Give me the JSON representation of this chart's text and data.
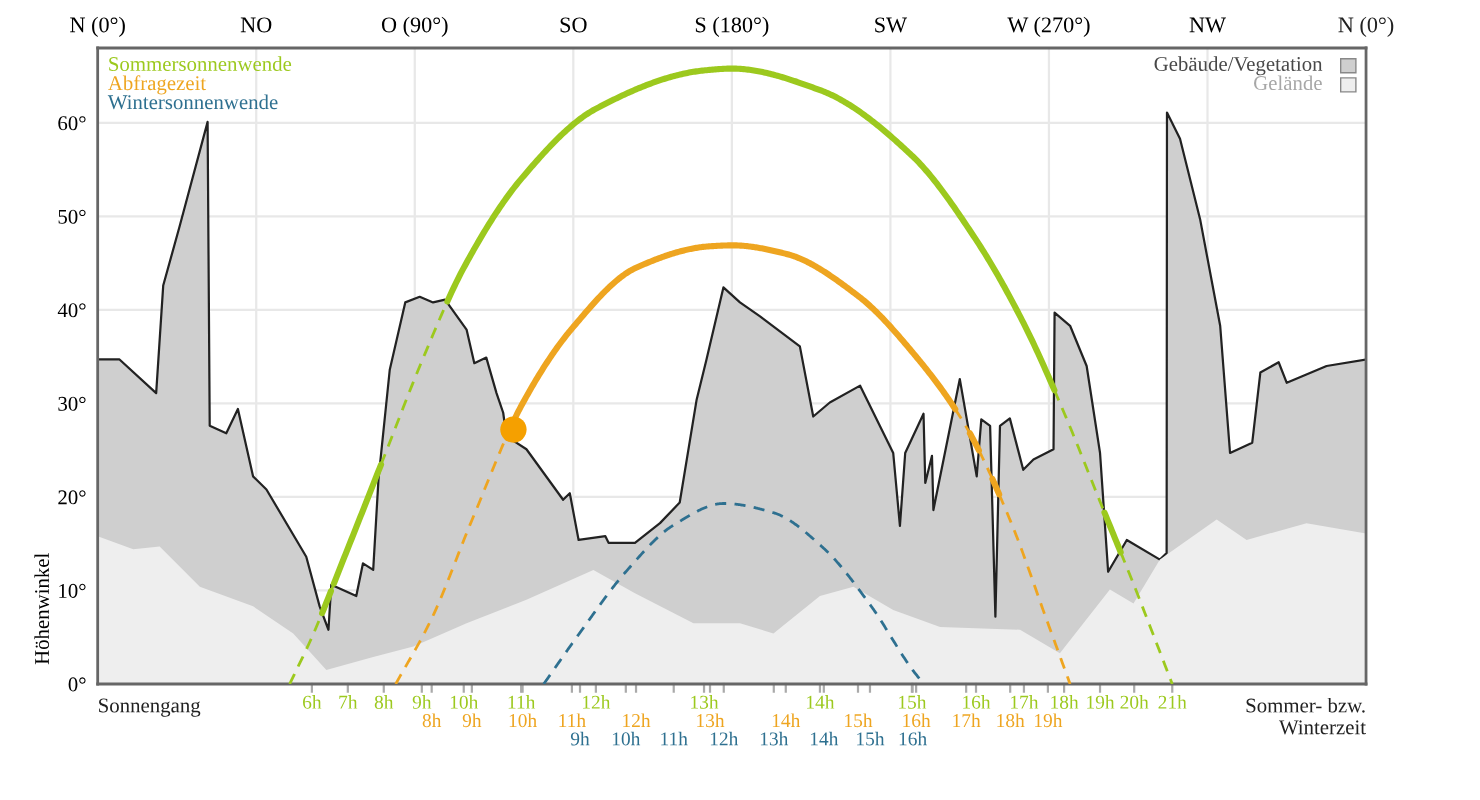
{
  "chart_data": {
    "type": "line",
    "ylabel": "Höhenwinkel",
    "xlim": [
      0,
      360
    ],
    "ylim": [
      0,
      68
    ],
    "xticks": [
      {
        "value": 0,
        "label": "N (0°)"
      },
      {
        "value": 45,
        "label": "NO"
      },
      {
        "value": 90,
        "label": "O (90°)"
      },
      {
        "value": 135,
        "label": "SO"
      },
      {
        "value": 180,
        "label": "S (180°)"
      },
      {
        "value": 225,
        "label": "SW"
      },
      {
        "value": 270,
        "label": "W (270°)"
      },
      {
        "value": 315,
        "label": "NW"
      }
    ],
    "yticks": [
      {
        "value": 0,
        "label": "0°"
      },
      {
        "value": 10,
        "label": "10°"
      },
      {
        "value": 20,
        "label": "20°"
      },
      {
        "value": 30,
        "label": "30°"
      },
      {
        "value": 40,
        "label": "40°"
      },
      {
        "value": 50,
        "label": "50°"
      },
      {
        "value": 60,
        "label": "60°"
      }
    ],
    "grid": true,
    "legend": "top",
    "annotations": [
      "Sonnengang",
      "Sommer- bzw.\nWinterzeit",
      "N (0°)",
      {
        "text": "6h",
        "x": 60.8,
        "y": 0
      },
      {
        "text": "7h",
        "x": 71.0,
        "y": 0
      },
      {
        "text": "8h",
        "x": 81.2,
        "y": 0
      },
      {
        "text": "9h",
        "x": 92.0,
        "y": 0
      },
      {
        "text": "10h",
        "x": 103.9,
        "y": 0
      },
      {
        "text": "11h",
        "x": 120.2,
        "y": 0
      },
      {
        "text": "12h",
        "x": 141.4,
        "y": 0
      },
      {
        "text": "13h",
        "x": 172.1,
        "y": 0
      },
      {
        "text": "14h",
        "x": 205.0,
        "y": 0
      },
      {
        "text": "15h",
        "x": 231.1,
        "y": 0
      },
      {
        "text": "16h",
        "x": 249.3,
        "y": 0
      },
      {
        "text": "17h",
        "x": 262.9,
        "y": 0
      },
      {
        "text": "18h",
        "x": 274.3,
        "y": 0
      },
      {
        "text": "19h",
        "x": 284.5,
        "y": 0
      },
      {
        "text": "20h",
        "x": 294.2,
        "y": 0
      },
      {
        "text": "21h",
        "x": 305.0,
        "y": 0
      },
      {
        "text": "8h",
        "x": 94.8,
        "y": 0
      },
      {
        "text": "9h",
        "x": 106.2,
        "y": 0
      },
      {
        "text": "10h",
        "x": 120.6,
        "y": 0
      },
      {
        "text": "11h",
        "x": 134.6,
        "y": 0
      },
      {
        "text": "12h",
        "x": 152.8,
        "y": 0
      },
      {
        "text": "13h",
        "x": 173.8,
        "y": 0
      },
      {
        "text": "14h",
        "x": 195.3,
        "y": 0
      },
      {
        "text": "15h",
        "x": 215.8,
        "y": 0
      },
      {
        "text": "16h",
        "x": 232.3,
        "y": 0
      },
      {
        "text": "17h",
        "x": 246.5,
        "y": 0
      },
      {
        "text": "18h",
        "x": 259.0,
        "y": 0
      },
      {
        "text": "19h",
        "x": 269.7,
        "y": 0
      },
      {
        "text": "9h",
        "x": 136.9,
        "y": 0
      },
      {
        "text": "10h",
        "x": 149.9,
        "y": 0
      },
      {
        "text": "11h",
        "x": 163.5,
        "y": 0
      },
      {
        "text": "12h",
        "x": 177.7,
        "y": 0
      },
      {
        "text": "13h",
        "x": 191.9,
        "y": 0
      },
      {
        "text": "14h",
        "x": 206.1,
        "y": 0
      },
      {
        "text": "15h",
        "x": 219.2,
        "y": 0
      },
      {
        "text": "16h",
        "x": 231.3,
        "y": 0
      }
    ],
    "series": [
      {
        "name": "Gebäude/Vegetation",
        "type": "area",
        "color": "#cfcfcf",
        "line_style": "solid",
        "x": [
          0,
          6.2,
          16.6,
          18.6,
          23.3,
          31.2,
          31.8,
          36.5,
          39.8,
          44.1,
          47.9,
          59.2,
          63.0,
          65.5,
          66.3,
          73.4,
          75.3,
          78.2,
          79.7,
          82.9,
          87.3,
          91.4,
          95.2,
          98.6,
          104.7,
          106.9,
          110.3,
          113.2,
          115.1,
          116.0,
          121.7,
          132.1,
          134.0,
          136.5,
          144.1,
          145.0,
          152.5,
          159.6,
          165.2,
          170.0,
          172.8,
          177.6,
          182.3,
          188.0,
          199.3,
          203.1,
          207.8,
          216.4,
          225.8,
          227.7,
          229.2,
          234.4,
          234.9,
          236.8,
          237.2,
          244.7,
          249.5,
          250.8,
          253.3,
          254.8,
          256.1,
          258.9,
          262.7,
          265.6,
          271.3,
          271.6,
          276.0,
          280.7,
          284.5,
          286.8,
          292.1,
          301.5,
          303.4,
          303.5,
          307.2,
          312.9,
          318.6,
          321.4,
          327.7,
          330.0,
          335.2,
          337.5,
          348.8,
          360
        ],
        "values": [
          34.7,
          34.7,
          31.1,
          42.6,
          49,
          60.1,
          27.6,
          26.8,
          29.4,
          22.2,
          20.8,
          13.6,
          8.3,
          5.8,
          10.6,
          9.4,
          12.9,
          12.2,
          21.9,
          33.6,
          40.8,
          41.4,
          40.8,
          41.1,
          37.9,
          34.3,
          34.9,
          31.1,
          29.0,
          26.5,
          25.1,
          19.7,
          20.4,
          15.4,
          15.8,
          15.1,
          15.1,
          17.2,
          19.4,
          30.4,
          34.7,
          42.4,
          40.8,
          39.3,
          36.1,
          28.6,
          30.1,
          31.9,
          24.7,
          16.9,
          24.7,
          28.9,
          21.5,
          24.4,
          18.6,
          32.6,
          22.2,
          28.3,
          27.6,
          7.2,
          27.6,
          28.4,
          22.9,
          24.0,
          25.1,
          39.7,
          38.3,
          34.0,
          24.7,
          12.0,
          15.4,
          13.3,
          14.0,
          61.1,
          58.3,
          49.7,
          38.3,
          24.7,
          25.8,
          33.3,
          34.4,
          32.2,
          34.0,
          34.7
        ]
      },
      {
        "name": "Gelände",
        "type": "area",
        "color": "#eeeeee",
        "x": [
          0,
          10.1,
          17.6,
          29.0,
          44.1,
          55.5,
          64.9,
          78.2,
          89.6,
          104.7,
          121.7,
          140.7,
          152.5,
          169.1,
          182.3,
          191.8,
          205.0,
          214.5,
          225.8,
          239.1,
          261.8,
          273.1,
          287.3,
          294.0,
          301.5,
          317.6,
          326.1,
          343.1,
          360
        ],
        "values": [
          15.8,
          14.4,
          14.7,
          10.4,
          8.3,
          5.4,
          1.5,
          2.9,
          4.0,
          6.5,
          9.0,
          12.2,
          9.7,
          6.5,
          6.5,
          5.4,
          9.4,
          10.4,
          7.9,
          6.1,
          5.8,
          3.3,
          10.1,
          8.6,
          13.3,
          17.6,
          15.4,
          17.2,
          16.1
        ]
      },
      {
        "name": "Sommersonnenwende",
        "color": "#9cc91e",
        "x": [
          54.5,
          60.8,
          71.0,
          81.2,
          92.0,
          103.9,
          120.2,
          141.4,
          172.1,
          180,
          205.0,
          231.1,
          249.3,
          262.9,
          274.3,
          284.5,
          294.2,
          305.0
        ],
        "values": [
          0,
          5,
          14.5,
          24.2,
          34.5,
          44.5,
          54,
          61.5,
          65.6,
          65.8,
          63.5,
          56.5,
          47.5,
          38.5,
          29,
          19.5,
          10.5,
          0
        ]
      },
      {
        "name": "Abfragezeit",
        "color": "#eea520",
        "x": [
          84.6,
          94.8,
          106.2,
          120.6,
          134.6,
          152.8,
          173.8,
          180.3,
          195.3,
          215.8,
          232.3,
          246.5,
          259.0,
          269.7,
          276.0
        ],
        "values": [
          0,
          7,
          17.5,
          30,
          38,
          44.5,
          46.8,
          46.9,
          46,
          41.5,
          35,
          27.5,
          17.5,
          6.5,
          0
        ]
      },
      {
        "name": "Wintersonnenwende",
        "color": "#2e7090",
        "line_style": "dashed",
        "x": [
          126.6,
          136.9,
          149.9,
          163.5,
          177.7,
          191.9,
          206.1,
          219.2,
          231.3,
          234.5
        ],
        "values": [
          0,
          5.5,
          12,
          17,
          19.3,
          18.3,
          14.5,
          8.5,
          1.5,
          0
        ]
      },
      {
        "type": "scatter",
        "color": "#f5a000",
        "marker": "circle",
        "x": [
          118
        ],
        "values": [
          27.2
        ]
      }
    ]
  }
}
